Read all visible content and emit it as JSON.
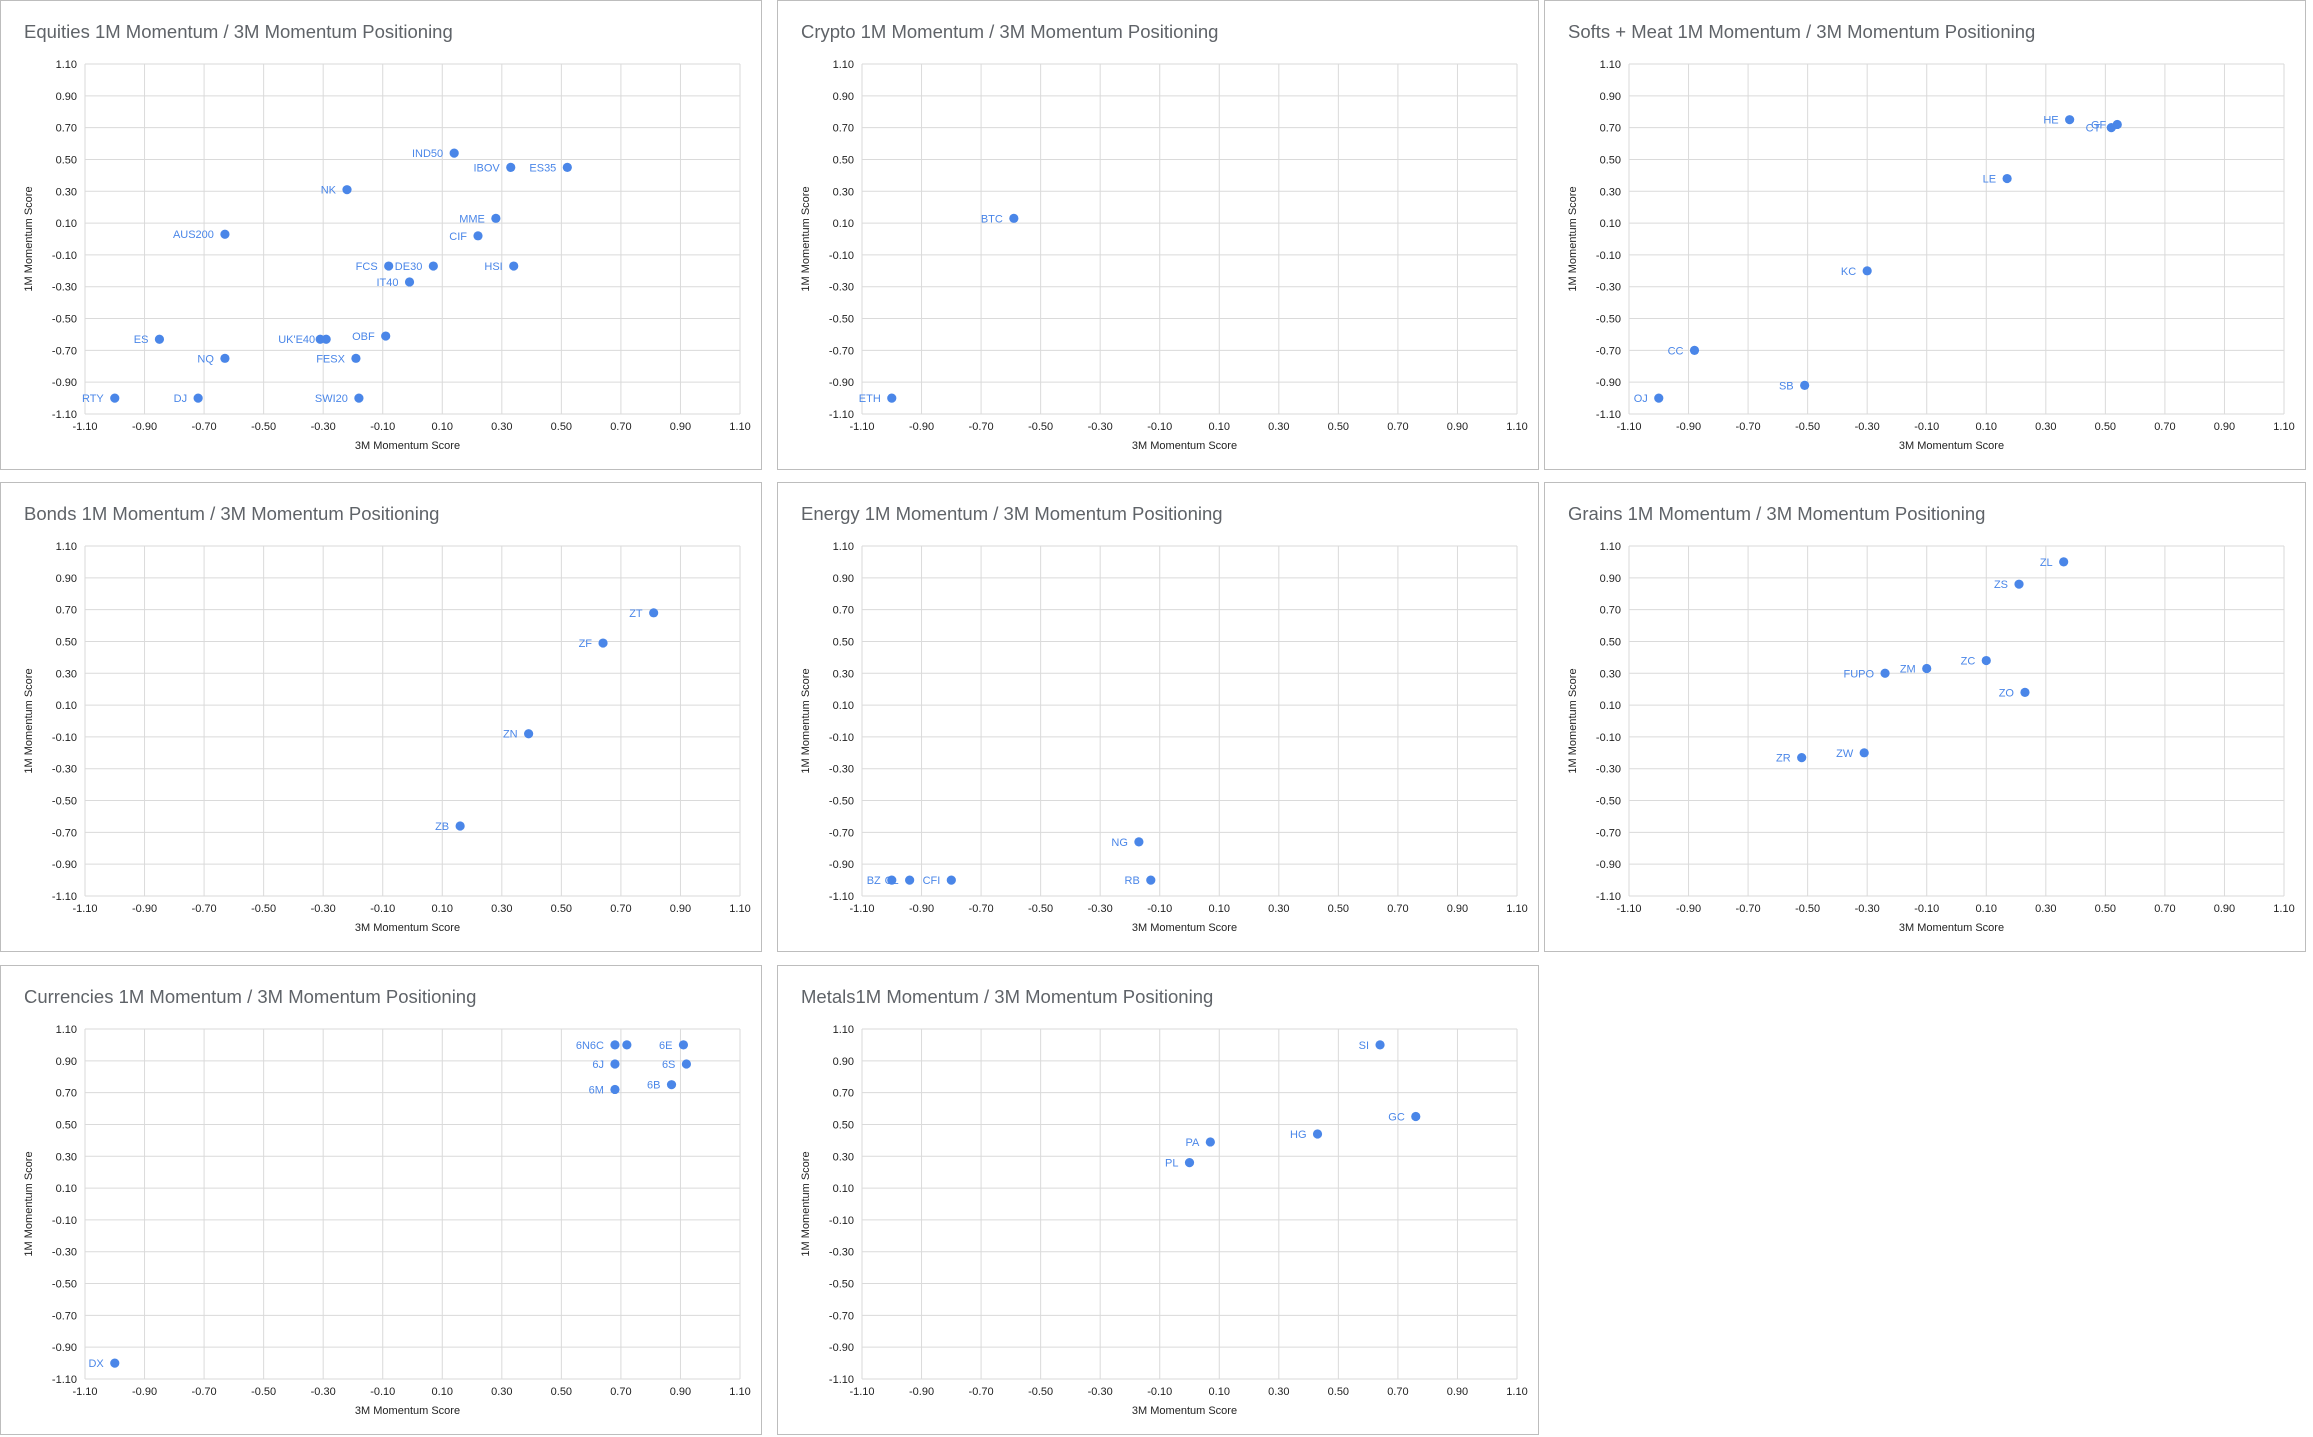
{
  "chart_data": [
    {
      "type": "scatter",
      "title": "Equities 1M Momentum / 3M Momentum Positioning",
      "xlabel": "3M Momentum Score",
      "ylabel": "1M Momentum Score",
      "xlim": [
        -1.1,
        1.1
      ],
      "ylim": [
        -1.1,
        1.1
      ],
      "x_ticks": [
        "-1.10",
        "-0.90",
        "-0.70",
        "-0.50",
        "-0.30",
        "-0.10",
        "0.10",
        "0.30",
        "0.50",
        "0.70",
        "0.90",
        "1.10"
      ],
      "y_ticks": [
        "1.10",
        "0.90",
        "0.70",
        "0.50",
        "0.30",
        "0.10",
        "-0.10",
        "-0.30",
        "-0.50",
        "-0.70",
        "-0.90",
        "-1.10"
      ],
      "grid": true,
      "color": "#4a86e8",
      "points": [
        {
          "label": "IND50",
          "x": 0.14,
          "y": 0.54
        },
        {
          "label": "IBOV",
          "x": 0.33,
          "y": 0.45
        },
        {
          "label": "ES35",
          "x": 0.52,
          "y": 0.45
        },
        {
          "label": "NK",
          "x": -0.22,
          "y": 0.31
        },
        {
          "label": "MME",
          "x": 0.28,
          "y": 0.13
        },
        {
          "label": "AUS200",
          "x": -0.63,
          "y": 0.03
        },
        {
          "label": "CIF",
          "x": 0.22,
          "y": 0.02
        },
        {
          "label": "FCS",
          "x": -0.08,
          "y": -0.17
        },
        {
          "label": "DE30",
          "x": 0.07,
          "y": -0.17
        },
        {
          "label": "HSI",
          "x": 0.34,
          "y": -0.17
        },
        {
          "label": "IT40",
          "x": -0.01,
          "y": -0.27
        },
        {
          "label": "ES",
          "x": -0.85,
          "y": -0.63
        },
        {
          "label": "UK'E40",
          "x": -0.29,
          "y": -0.63
        },
        {
          "label": "",
          "x": -0.31,
          "y": -0.63
        },
        {
          "label": "OBF",
          "x": -0.09,
          "y": -0.61
        },
        {
          "label": "NQ",
          "x": -0.63,
          "y": -0.75
        },
        {
          "label": "FESX",
          "x": -0.19,
          "y": -0.75
        },
        {
          "label": "RTY",
          "x": -1.0,
          "y": -1.0
        },
        {
          "label": "DJ",
          "x": -0.72,
          "y": -1.0
        },
        {
          "label": "SWI20",
          "x": -0.18,
          "y": -1.0
        }
      ]
    },
    {
      "type": "scatter",
      "title": "Crypto 1M Momentum / 3M Momentum Positioning",
      "xlabel": "3M Momentum Score",
      "ylabel": "1M Momentum Score",
      "xlim": [
        -1.1,
        1.1
      ],
      "ylim": [
        -1.1,
        1.1
      ],
      "x_ticks": [
        "-1.10",
        "-0.90",
        "-0.70",
        "-0.50",
        "-0.30",
        "-0.10",
        "0.10",
        "0.30",
        "0.50",
        "0.70",
        "0.90",
        "1.10"
      ],
      "y_ticks": [
        "1.10",
        "0.90",
        "0.70",
        "0.50",
        "0.30",
        "0.10",
        "-0.10",
        "-0.30",
        "-0.50",
        "-0.70",
        "-0.90",
        "-1.10"
      ],
      "grid": true,
      "color": "#4a86e8",
      "points": [
        {
          "label": "BTC",
          "x": -0.59,
          "y": 0.13
        },
        {
          "label": "ETH",
          "x": -1.0,
          "y": -1.0
        }
      ]
    },
    {
      "type": "scatter",
      "title": "Softs + Meat 1M Momentum / 3M Momentum Positioning",
      "xlabel": "3M Momentum Score",
      "ylabel": "1M Momentum Score",
      "xlim": [
        -1.1,
        1.1
      ],
      "ylim": [
        -1.1,
        1.1
      ],
      "x_ticks": [
        "-1.10",
        "-0.90",
        "-0.70",
        "-0.50",
        "-0.30",
        "-0.10",
        "0.10",
        "0.30",
        "0.50",
        "0.70",
        "0.90",
        "1.10"
      ],
      "y_ticks": [
        "1.10",
        "0.90",
        "0.70",
        "0.50",
        "0.30",
        "0.10",
        "-0.10",
        "-0.30",
        "-0.50",
        "-0.70",
        "-0.90",
        "-1.10"
      ],
      "grid": true,
      "color": "#4a86e8",
      "points": [
        {
          "label": "HE",
          "x": 0.38,
          "y": 0.75
        },
        {
          "label": "GF",
          "x": 0.54,
          "y": 0.72
        },
        {
          "label": "CT",
          "x": 0.52,
          "y": 0.7
        },
        {
          "label": "LE",
          "x": 0.17,
          "y": 0.38
        },
        {
          "label": "KC",
          "x": -0.3,
          "y": -0.2
        },
        {
          "label": "CC",
          "x": -0.88,
          "y": -0.7
        },
        {
          "label": "SB",
          "x": -0.51,
          "y": -0.92
        },
        {
          "label": "OJ",
          "x": -1.0,
          "y": -1.0
        }
      ]
    },
    {
      "type": "scatter",
      "title": "Bonds 1M Momentum / 3M Momentum Positioning",
      "xlabel": "3M Momentum Score",
      "ylabel": "1M Momentum Score",
      "xlim": [
        -1.1,
        1.1
      ],
      "ylim": [
        -1.1,
        1.1
      ],
      "x_ticks": [
        "-1.10",
        "-0.90",
        "-0.70",
        "-0.50",
        "-0.30",
        "-0.10",
        "0.10",
        "0.30",
        "0.50",
        "0.70",
        "0.90",
        "1.10"
      ],
      "y_ticks": [
        "1.10",
        "0.90",
        "0.70",
        "0.50",
        "0.30",
        "0.10",
        "-0.10",
        "-0.30",
        "-0.50",
        "-0.70",
        "-0.90",
        "-1.10"
      ],
      "grid": true,
      "color": "#4a86e8",
      "points": [
        {
          "label": "ZT",
          "x": 0.81,
          "y": 0.68
        },
        {
          "label": "ZF",
          "x": 0.64,
          "y": 0.49
        },
        {
          "label": "ZN",
          "x": 0.39,
          "y": -0.08
        },
        {
          "label": "ZB",
          "x": 0.16,
          "y": -0.66
        }
      ]
    },
    {
      "type": "scatter",
      "title": "Energy 1M Momentum / 3M Momentum Positioning",
      "xlabel": "3M Momentum Score",
      "ylabel": "1M Momentum Score",
      "xlim": [
        -1.1,
        1.1
      ],
      "ylim": [
        -1.1,
        1.1
      ],
      "x_ticks": [
        "-1.10",
        "-0.90",
        "-0.70",
        "-0.50",
        "-0.30",
        "-0.10",
        "0.10",
        "0.30",
        "0.50",
        "0.70",
        "0.90",
        "1.10"
      ],
      "y_ticks": [
        "1.10",
        "0.90",
        "0.70",
        "0.50",
        "0.30",
        "0.10",
        "-0.10",
        "-0.30",
        "-0.50",
        "-0.70",
        "-0.90",
        "-1.10"
      ],
      "grid": true,
      "color": "#4a86e8",
      "points": [
        {
          "label": "NG",
          "x": -0.17,
          "y": -0.76
        },
        {
          "label": "RB",
          "x": -0.13,
          "y": -1.0
        },
        {
          "label": "BZ",
          "x": -1.0,
          "y": -1.0
        },
        {
          "label": "CL",
          "x": -0.94,
          "y": -1.0
        },
        {
          "label": "CFI",
          "x": -0.8,
          "y": -1.0
        }
      ]
    },
    {
      "type": "scatter",
      "title": "Grains 1M Momentum / 3M Momentum Positioning",
      "xlabel": "3M Momentum Score",
      "ylabel": "1M Momentum Score",
      "xlim": [
        -1.1,
        1.1
      ],
      "ylim": [
        -1.1,
        1.1
      ],
      "x_ticks": [
        "-1.10",
        "-0.90",
        "-0.70",
        "-0.50",
        "-0.30",
        "-0.10",
        "0.10",
        "0.30",
        "0.50",
        "0.70",
        "0.90",
        "1.10"
      ],
      "y_ticks": [
        "1.10",
        "0.90",
        "0.70",
        "0.50",
        "0.30",
        "0.10",
        "-0.10",
        "-0.30",
        "-0.50",
        "-0.70",
        "-0.90",
        "-1.10"
      ],
      "grid": true,
      "color": "#4a86e8",
      "points": [
        {
          "label": "ZL",
          "x": 0.36,
          "y": 1.0
        },
        {
          "label": "ZS",
          "x": 0.21,
          "y": 0.86
        },
        {
          "label": "ZC",
          "x": 0.1,
          "y": 0.38
        },
        {
          "label": "ZM",
          "x": -0.1,
          "y": 0.33
        },
        {
          "label": "FUPO",
          "x": -0.24,
          "y": 0.3
        },
        {
          "label": "ZO",
          "x": 0.23,
          "y": 0.18
        },
        {
          "label": "ZW",
          "x": -0.31,
          "y": -0.2
        },
        {
          "label": "ZR",
          "x": -0.52,
          "y": -0.23
        }
      ]
    },
    {
      "type": "scatter",
      "title": "Currencies 1M Momentum / 3M Momentum Positioning",
      "xlabel": "3M Momentum Score",
      "ylabel": "1M Momentum Score",
      "xlim": [
        -1.1,
        1.1
      ],
      "ylim": [
        -1.1,
        1.1
      ],
      "x_ticks": [
        "-1.10",
        "-0.90",
        "-0.70",
        "-0.50",
        "-0.30",
        "-0.10",
        "0.10",
        "0.30",
        "0.50",
        "0.70",
        "0.90",
        "1.10"
      ],
      "y_ticks": [
        "1.10",
        "0.90",
        "0.70",
        "0.50",
        "0.30",
        "0.10",
        "-0.10",
        "-0.30",
        "-0.50",
        "-0.70",
        "-0.90",
        "-1.10"
      ],
      "grid": true,
      "color": "#4a86e8",
      "points": [
        {
          "label": "6N6C",
          "x": 0.68,
          "y": 1.0
        },
        {
          "label": "",
          "x": 0.72,
          "y": 1.0
        },
        {
          "label": "6E",
          "x": 0.91,
          "y": 1.0
        },
        {
          "label": "6J",
          "x": 0.68,
          "y": 0.88
        },
        {
          "label": "6S",
          "x": 0.92,
          "y": 0.88
        },
        {
          "label": "6B",
          "x": 0.87,
          "y": 0.75
        },
        {
          "label": "6M",
          "x": 0.68,
          "y": 0.72
        },
        {
          "label": "DX",
          "x": -1.0,
          "y": -1.0
        }
      ]
    },
    {
      "type": "scatter",
      "title": "Metals1M Momentum / 3M Momentum Positioning",
      "xlabel": "3M Momentum Score",
      "ylabel": "1M Momentum Score",
      "xlim": [
        -1.1,
        1.1
      ],
      "ylim": [
        -1.1,
        1.1
      ],
      "x_ticks": [
        "-1.10",
        "-0.90",
        "-0.70",
        "-0.50",
        "-0.30",
        "-0.10",
        "0.10",
        "0.30",
        "0.50",
        "0.70",
        "0.90",
        "1.10"
      ],
      "y_ticks": [
        "1.10",
        "0.90",
        "0.70",
        "0.50",
        "0.30",
        "0.10",
        "-0.10",
        "-0.30",
        "-0.50",
        "-0.70",
        "-0.90",
        "-1.10"
      ],
      "grid": true,
      "color": "#4a86e8",
      "points": [
        {
          "label": "SI",
          "x": 0.64,
          "y": 1.0
        },
        {
          "label": "GC",
          "x": 0.76,
          "y": 0.55
        },
        {
          "label": "HG",
          "x": 0.43,
          "y": 0.44
        },
        {
          "label": "PA",
          "x": 0.07,
          "y": 0.39
        },
        {
          "label": "PL",
          "x": 0.0,
          "y": 0.26
        }
      ]
    }
  ]
}
